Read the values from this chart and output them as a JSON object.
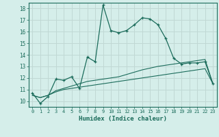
{
  "xlabel": "Humidex (Indice chaleur)",
  "background_color": "#d5eeea",
  "plot_bg_color": "#d5eeea",
  "grid_color": "#c0d8d4",
  "line_color": "#1a6b5a",
  "xlim": [
    -0.5,
    23.5
  ],
  "ylim": [
    9.5,
    18.5
  ],
  "yticks": [
    10,
    11,
    12,
    13,
    14,
    15,
    16,
    17,
    18
  ],
  "xticks": [
    0,
    1,
    2,
    3,
    4,
    5,
    6,
    7,
    8,
    9,
    10,
    11,
    12,
    13,
    14,
    15,
    16,
    17,
    18,
    19,
    20,
    21,
    22,
    23
  ],
  "s1_x": [
    0,
    1,
    2,
    3,
    4,
    5,
    6,
    7,
    8,
    9,
    10,
    11,
    12,
    13,
    14,
    15,
    16,
    17,
    18,
    19,
    20,
    21,
    22,
    23
  ],
  "s1_y": [
    10.7,
    9.8,
    10.4,
    11.9,
    11.8,
    12.1,
    11.1,
    13.8,
    13.4,
    18.3,
    16.1,
    15.9,
    16.1,
    16.6,
    17.2,
    17.1,
    16.6,
    15.4,
    13.7,
    13.2,
    13.3,
    13.3,
    13.4,
    11.5
  ],
  "s2_x": [
    0,
    1,
    2,
    3,
    4,
    5,
    6,
    7,
    8,
    9,
    10,
    11,
    12,
    13,
    14,
    15,
    16,
    17,
    18,
    19,
    20,
    21,
    22,
    23
  ],
  "s2_y": [
    10.5,
    10.3,
    10.5,
    10.8,
    11.0,
    11.1,
    11.2,
    11.3,
    11.4,
    11.5,
    11.6,
    11.7,
    11.8,
    11.9,
    12.0,
    12.1,
    12.2,
    12.3,
    12.4,
    12.5,
    12.6,
    12.7,
    12.8,
    11.5
  ],
  "s3_x": [
    0,
    1,
    2,
    3,
    4,
    5,
    6,
    7,
    8,
    9,
    10,
    11,
    12,
    13,
    14,
    15,
    16,
    17,
    18,
    19,
    20,
    21,
    22,
    23
  ],
  "s3_y": [
    10.5,
    10.3,
    10.5,
    10.9,
    11.1,
    11.3,
    11.5,
    11.7,
    11.8,
    11.9,
    12.0,
    12.1,
    12.3,
    12.5,
    12.7,
    12.85,
    13.0,
    13.1,
    13.2,
    13.3,
    13.4,
    13.5,
    13.6,
    11.5
  ]
}
